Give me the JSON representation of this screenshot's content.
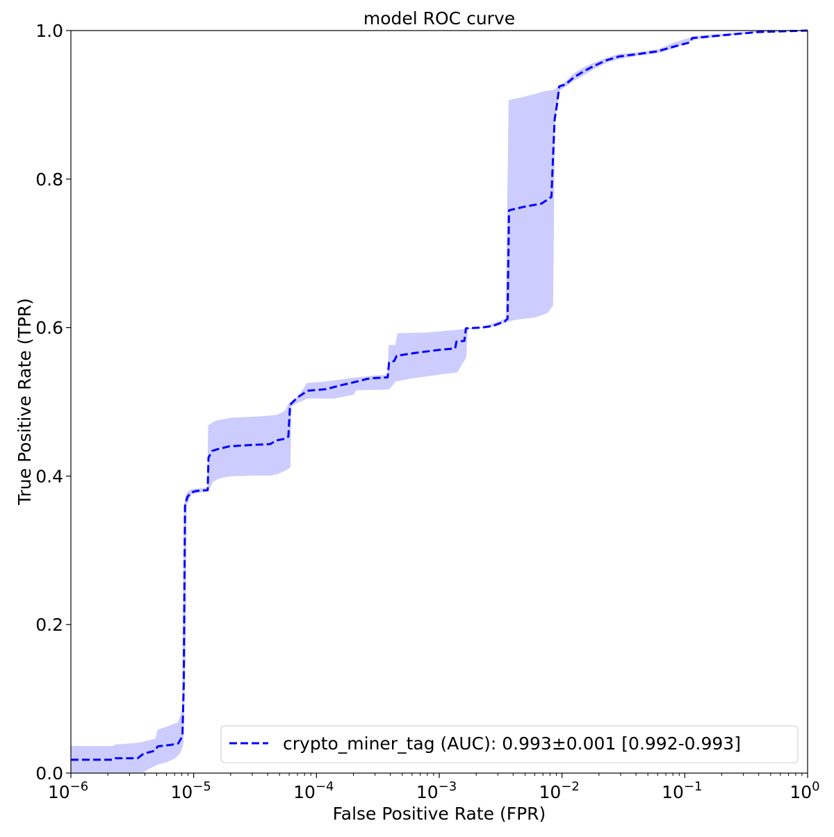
{
  "chart_data": {
    "type": "line",
    "title": "model ROC curve",
    "xlabel": "False Positive Rate (FPR)",
    "ylabel": "True Positive Rate (TPR)",
    "xscale": "log",
    "xlim": [
      1e-06,
      1
    ],
    "ylim": [
      0.0,
      1.0
    ],
    "x_ticks": [
      {
        "value": 1e-06,
        "base": "10",
        "exp": "−6"
      },
      {
        "value": 1e-05,
        "base": "10",
        "exp": "−5"
      },
      {
        "value": 0.0001,
        "base": "10",
        "exp": "−4"
      },
      {
        "value": 0.001,
        "base": "10",
        "exp": "−3"
      },
      {
        "value": 0.01,
        "base": "10",
        "exp": "−2"
      },
      {
        "value": 0.1,
        "base": "10",
        "exp": "−1"
      },
      {
        "value": 1,
        "base": "10",
        "exp": "0"
      }
    ],
    "y_ticks": [
      "0.0",
      "0.2",
      "0.4",
      "0.6",
      "0.8",
      "1.0"
    ],
    "grid": false,
    "legend_position": "bottom-right",
    "series": [
      {
        "name": "crypto_miner_tag (AUC): 0.993±0.001 [0.992-0.993]",
        "color": "#0000ff",
        "line_style": "dashed",
        "band_color": "#ccccff",
        "points": [
          [
            1e-06,
            0.018
          ],
          [
            2.2e-06,
            0.018
          ],
          [
            2.3e-06,
            0.02
          ],
          [
            3.5e-06,
            0.02
          ],
          [
            3.9e-06,
            0.026
          ],
          [
            4.8e-06,
            0.03
          ],
          [
            5.1e-06,
            0.036
          ],
          [
            6.5e-06,
            0.038
          ],
          [
            7.5e-06,
            0.04
          ],
          [
            8.1e-06,
            0.05
          ],
          [
            8.3e-06,
            0.12
          ],
          [
            8.5e-06,
            0.36
          ],
          [
            8.9e-06,
            0.372
          ],
          [
            9.6e-06,
            0.378
          ],
          [
            1.05e-05,
            0.38
          ],
          [
            1.3e-05,
            0.381
          ],
          [
            1.32e-05,
            0.425
          ],
          [
            1.42e-05,
            0.434
          ],
          [
            1.55e-05,
            0.436
          ],
          [
            1.95e-05,
            0.44
          ],
          [
            3e-05,
            0.442
          ],
          [
            4.2e-05,
            0.443
          ],
          [
            4.7e-05,
            0.448
          ],
          [
            5.4e-05,
            0.45
          ],
          [
            5.9e-05,
            0.453
          ],
          [
            6.1e-05,
            0.496
          ],
          [
            7e-05,
            0.506
          ],
          [
            8.5e-05,
            0.515
          ],
          [
            0.00012,
            0.517
          ],
          [
            0.000155,
            0.522
          ],
          [
            0.00021,
            0.527
          ],
          [
            0.00026,
            0.531
          ],
          [
            0.0003,
            0.532
          ],
          [
            0.00038,
            0.533
          ],
          [
            0.00039,
            0.553
          ],
          [
            0.00043,
            0.555
          ],
          [
            0.00045,
            0.562
          ],
          [
            0.00065,
            0.566
          ],
          [
            0.001,
            0.57
          ],
          [
            0.00135,
            0.572
          ],
          [
            0.00138,
            0.581
          ],
          [
            0.0016,
            0.582
          ],
          [
            0.00165,
            0.599
          ],
          [
            0.0022,
            0.6
          ],
          [
            0.0027,
            0.602
          ],
          [
            0.0034,
            0.608
          ],
          [
            0.0036,
            0.612
          ],
          [
            0.0037,
            0.758
          ],
          [
            0.005,
            0.763
          ],
          [
            0.0068,
            0.767
          ],
          [
            0.0082,
            0.776
          ],
          [
            0.0087,
            0.88
          ],
          [
            0.0091,
            0.9
          ],
          [
            0.0095,
            0.925
          ],
          [
            0.0105,
            0.927
          ],
          [
            0.0115,
            0.932
          ],
          [
            0.0125,
            0.937
          ],
          [
            0.015,
            0.945
          ],
          [
            0.018,
            0.952
          ],
          [
            0.023,
            0.96
          ],
          [
            0.029,
            0.965
          ],
          [
            0.04,
            0.968
          ],
          [
            0.06,
            0.972
          ],
          [
            0.08,
            0.978
          ],
          [
            0.11,
            0.984
          ],
          [
            0.115,
            0.99
          ],
          [
            0.16,
            0.992
          ],
          [
            0.25,
            0.995
          ],
          [
            0.4,
            0.998
          ],
          [
            1.0,
            1.0
          ]
        ],
        "band_upper": [
          [
            1e-06,
            0.036
          ],
          [
            2.2e-06,
            0.036
          ],
          [
            2.3e-06,
            0.038
          ],
          [
            3.4e-06,
            0.04
          ],
          [
            3.9e-06,
            0.042
          ],
          [
            4.9e-06,
            0.046
          ],
          [
            5.1e-06,
            0.058
          ],
          [
            6e-06,
            0.062
          ],
          [
            7.5e-06,
            0.068
          ],
          [
            8.1e-06,
            0.085
          ],
          [
            8.4e-06,
            0.36
          ],
          [
            8.6e-06,
            0.373
          ],
          [
            8.9e-06,
            0.378
          ],
          [
            9.6e-06,
            0.382
          ],
          [
            1.3e-05,
            0.384
          ],
          [
            1.32e-05,
            0.468
          ],
          [
            1.5e-05,
            0.474
          ],
          [
            2e-05,
            0.478
          ],
          [
            3.5e-05,
            0.48
          ],
          [
            4.8e-05,
            0.482
          ],
          [
            5.6e-05,
            0.488
          ],
          [
            6e-05,
            0.498
          ],
          [
            7.2e-05,
            0.508
          ],
          [
            8.4e-05,
            0.525
          ],
          [
            0.00012,
            0.527
          ],
          [
            0.0002,
            0.532
          ],
          [
            0.0003,
            0.535
          ],
          [
            0.00038,
            0.536
          ],
          [
            0.00039,
            0.576
          ],
          [
            0.00044,
            0.576
          ],
          [
            0.00046,
            0.592
          ],
          [
            0.0008,
            0.593
          ],
          [
            0.0015,
            0.597
          ],
          [
            0.0022,
            0.6
          ],
          [
            0.0026,
            0.604
          ],
          [
            0.0035,
            0.612
          ],
          [
            0.0037,
            0.906
          ],
          [
            0.0045,
            0.909
          ],
          [
            0.006,
            0.914
          ],
          [
            0.0072,
            0.918
          ],
          [
            0.0087,
            0.92
          ],
          [
            0.0094,
            0.925
          ],
          [
            0.0105,
            0.93
          ],
          [
            0.0125,
            0.942
          ],
          [
            0.015,
            0.95
          ],
          [
            0.018,
            0.956
          ],
          [
            0.023,
            0.963
          ],
          [
            0.029,
            0.968
          ],
          [
            0.04,
            0.97
          ],
          [
            0.06,
            0.974
          ],
          [
            0.08,
            0.983
          ],
          [
            0.12,
            0.992
          ],
          [
            0.16,
            0.994
          ],
          [
            0.4,
            0.999
          ],
          [
            1.0,
            1.0
          ]
        ],
        "band_lower": [
          [
            1e-06,
            0.0
          ],
          [
            3.8e-06,
            0.0
          ],
          [
            4.1e-06,
            0.004
          ],
          [
            5.1e-06,
            0.012
          ],
          [
            6e-06,
            0.015
          ],
          [
            7e-06,
            0.02
          ],
          [
            7.8e-06,
            0.028
          ],
          [
            8.2e-06,
            0.04
          ],
          [
            8.5e-06,
            0.15
          ],
          [
            8.7e-06,
            0.36
          ],
          [
            9e-06,
            0.366
          ],
          [
            9.6e-06,
            0.376
          ],
          [
            1.3e-05,
            0.38
          ],
          [
            1.35e-05,
            0.384
          ],
          [
            1.42e-05,
            0.392
          ],
          [
            1.55e-05,
            0.396
          ],
          [
            1.9e-05,
            0.4
          ],
          [
            3e-05,
            0.401
          ],
          [
            4.2e-05,
            0.401
          ],
          [
            4.8e-05,
            0.403
          ],
          [
            5.6e-05,
            0.408
          ],
          [
            6.1e-05,
            0.412
          ],
          [
            6.2e-05,
            0.494
          ],
          [
            7.2e-05,
            0.5
          ],
          [
            8.5e-05,
            0.505
          ],
          [
            0.00014,
            0.505
          ],
          [
            0.0002,
            0.51
          ],
          [
            0.00021,
            0.516
          ],
          [
            0.00039,
            0.517
          ],
          [
            0.00044,
            0.528
          ],
          [
            0.0006,
            0.532
          ],
          [
            0.001,
            0.537
          ],
          [
            0.0014,
            0.54
          ],
          [
            0.0015,
            0.549
          ],
          [
            0.00165,
            0.56
          ],
          [
            0.0017,
            0.599
          ],
          [
            0.0022,
            0.6
          ],
          [
            0.0028,
            0.602
          ],
          [
            0.0036,
            0.608
          ],
          [
            0.0042,
            0.611
          ],
          [
            0.006,
            0.614
          ],
          [
            0.0076,
            0.62
          ],
          [
            0.0084,
            0.63
          ],
          [
            0.0087,
            0.88
          ],
          [
            0.0092,
            0.905
          ],
          [
            0.0096,
            0.92
          ],
          [
            0.011,
            0.926
          ],
          [
            0.0125,
            0.933
          ],
          [
            0.015,
            0.94
          ],
          [
            0.018,
            0.948
          ],
          [
            0.023,
            0.957
          ],
          [
            0.029,
            0.962
          ],
          [
            0.04,
            0.966
          ],
          [
            0.06,
            0.97
          ],
          [
            0.08,
            0.976
          ],
          [
            0.12,
            0.988
          ],
          [
            0.16,
            0.991
          ],
          [
            0.4,
            0.998
          ],
          [
            1.0,
            1.0
          ]
        ]
      }
    ]
  }
}
